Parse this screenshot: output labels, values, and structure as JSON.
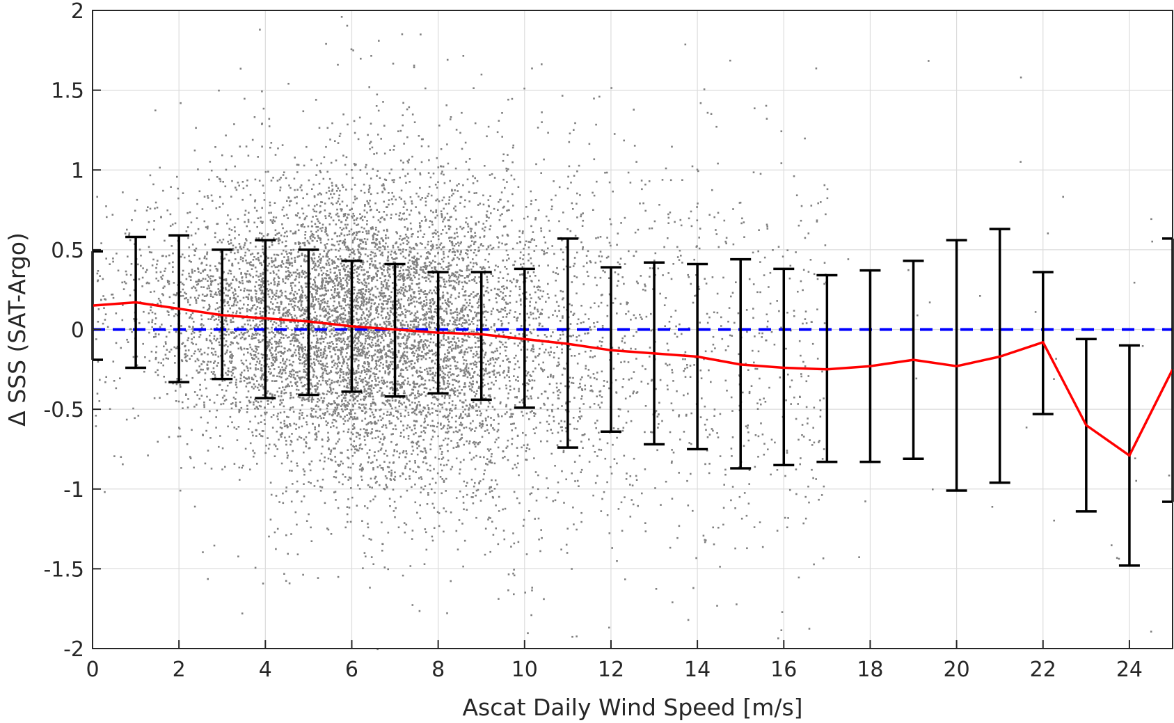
{
  "chart_data": {
    "type": "scatter",
    "title": "",
    "xlabel": "Ascat Daily Wind Speed [m/s]",
    "ylabel": "Δ SSS (SAT-Argo)",
    "xlim": [
      0,
      25
    ],
    "ylim": [
      -2,
      2
    ],
    "xticks": [
      0,
      2,
      4,
      6,
      8,
      10,
      12,
      14,
      16,
      18,
      20,
      22,
      24
    ],
    "yticks": [
      -2,
      -1.5,
      -1,
      -0.5,
      0,
      0.5,
      1,
      1.5,
      2
    ],
    "xtick_labels": [
      "0",
      "2",
      "4",
      "6",
      "8",
      "10",
      "12",
      "14",
      "16",
      "18",
      "20",
      "22",
      "24"
    ],
    "ytick_labels": [
      "-2",
      "-1.5",
      "-1",
      "-0.5",
      "0",
      "0.5",
      "1",
      "1.5",
      "2"
    ],
    "grid": true,
    "legend": "none",
    "colors": {
      "scatter": "#808080",
      "mean_line": "#ff0000",
      "zero_line": "#0000ff",
      "error_bars": "#000000",
      "grid": "#dcdcdc",
      "axes": "#262626"
    },
    "series": [
      {
        "type": "scatter",
        "points": "dense cloud of individual matchups, centered near 0, spread roughly ±0.8 at low wind, thinning above 15 m/s"
      },
      {
        "type": "line",
        "x": [
          0,
          1,
          2,
          3,
          4,
          5,
          6,
          7,
          8,
          9,
          10,
          11,
          12,
          13,
          14,
          15,
          16,
          17,
          18,
          19,
          20,
          21,
          22,
          23,
          24,
          25
        ],
        "y": [
          0.15,
          0.17,
          0.13,
          0.09,
          0.07,
          0.05,
          0.02,
          0.0,
          -0.02,
          -0.03,
          -0.06,
          -0.09,
          -0.13,
          -0.15,
          -0.17,
          -0.22,
          -0.24,
          -0.25,
          -0.23,
          -0.19,
          -0.23,
          -0.17,
          -0.08,
          -0.6,
          -0.79,
          -0.25
        ]
      },
      {
        "type": "errorbar",
        "x": [
          0,
          1,
          2,
          3,
          4,
          5,
          6,
          7,
          8,
          9,
          10,
          11,
          12,
          13,
          14,
          15,
          16,
          17,
          18,
          19,
          20,
          21,
          22,
          23,
          24,
          25
        ],
        "upper": [
          0.49,
          0.58,
          0.59,
          0.5,
          0.56,
          0.5,
          0.43,
          0.41,
          0.36,
          0.36,
          0.38,
          0.57,
          0.39,
          0.42,
          0.41,
          0.44,
          0.38,
          0.34,
          0.37,
          0.43,
          0.56,
          0.63,
          0.36,
          -0.06,
          -0.1,
          0.57
        ],
        "lower": [
          -0.19,
          -0.24,
          -0.33,
          -0.31,
          -0.43,
          -0.41,
          -0.39,
          -0.42,
          -0.4,
          -0.44,
          -0.49,
          -0.74,
          -0.64,
          -0.72,
          -0.75,
          -0.87,
          -0.85,
          -0.83,
          -0.83,
          -0.81,
          -1.01,
          -0.96,
          -0.53,
          -1.14,
          -1.48,
          -1.08
        ]
      }
    ],
    "reference_lines": [
      {
        "orientation": "horizontal",
        "y": 0,
        "style": "dashed"
      }
    ]
  }
}
